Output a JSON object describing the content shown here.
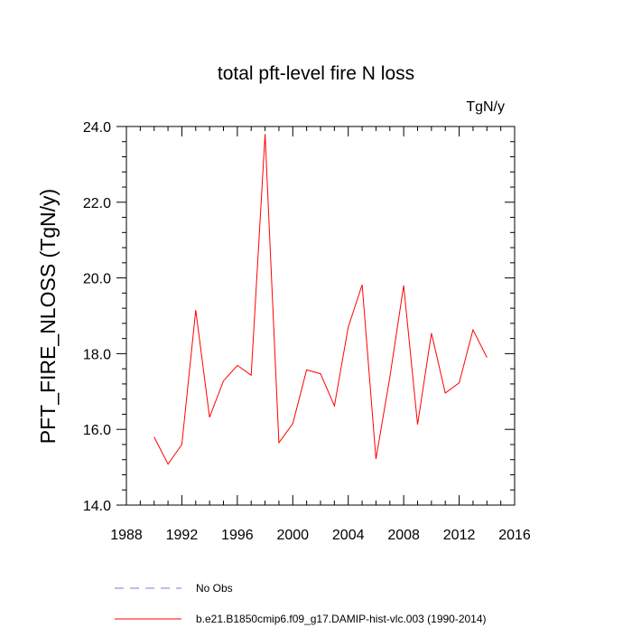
{
  "chart_data": {
    "type": "line",
    "title": "total pft-level fire N loss",
    "units": "TgN/y",
    "ylabel": "PFT_FIRE_NLOSS  (TgN/y)",
    "xlabel": "",
    "xlim": [
      1988,
      2016
    ],
    "ylim": [
      14.0,
      24.0
    ],
    "xticks": [
      1988,
      1992,
      1996,
      2000,
      2004,
      2008,
      2012,
      2016
    ],
    "xtick_labels": [
      "1988",
      "1992",
      "1996",
      "2000",
      "2004",
      "2008",
      "2012",
      "2016"
    ],
    "yticks": [
      14,
      16,
      18,
      20,
      22,
      24
    ],
    "ytick_labels": [
      "14.0",
      "16.0",
      "18.0",
      "20.0",
      "22.0",
      "24.0"
    ],
    "series": [
      {
        "name": "b.e21.B1850cmip6.f09_g17.DAMIP-hist-vlc.003 (1990-2014)",
        "color": "#ff0000",
        "style": "solid",
        "x": [
          1990,
          1991,
          1992,
          1993,
          1994,
          1995,
          1996,
          1997,
          1998,
          1999,
          2000,
          2001,
          2002,
          2003,
          2004,
          2005,
          2006,
          2007,
          2008,
          2009,
          2010,
          2011,
          2012,
          2013,
          2014
        ],
        "values": [
          15.8,
          15.08,
          15.6,
          19.15,
          16.32,
          17.28,
          17.69,
          17.43,
          23.8,
          15.65,
          16.15,
          17.57,
          17.47,
          16.62,
          18.7,
          19.82,
          15.22,
          17.38,
          19.8,
          16.13,
          18.54,
          16.96,
          17.23,
          18.63,
          17.9
        ]
      }
    ],
    "legend": [
      {
        "label": "No Obs",
        "color": "#7777ee",
        "style": "dashed"
      },
      {
        "label": "b.e21.B1850cmip6.f09_g17.DAMIP-hist-vlc.003 (1990-2014)",
        "color": "#ff0000",
        "style": "solid"
      }
    ]
  }
}
